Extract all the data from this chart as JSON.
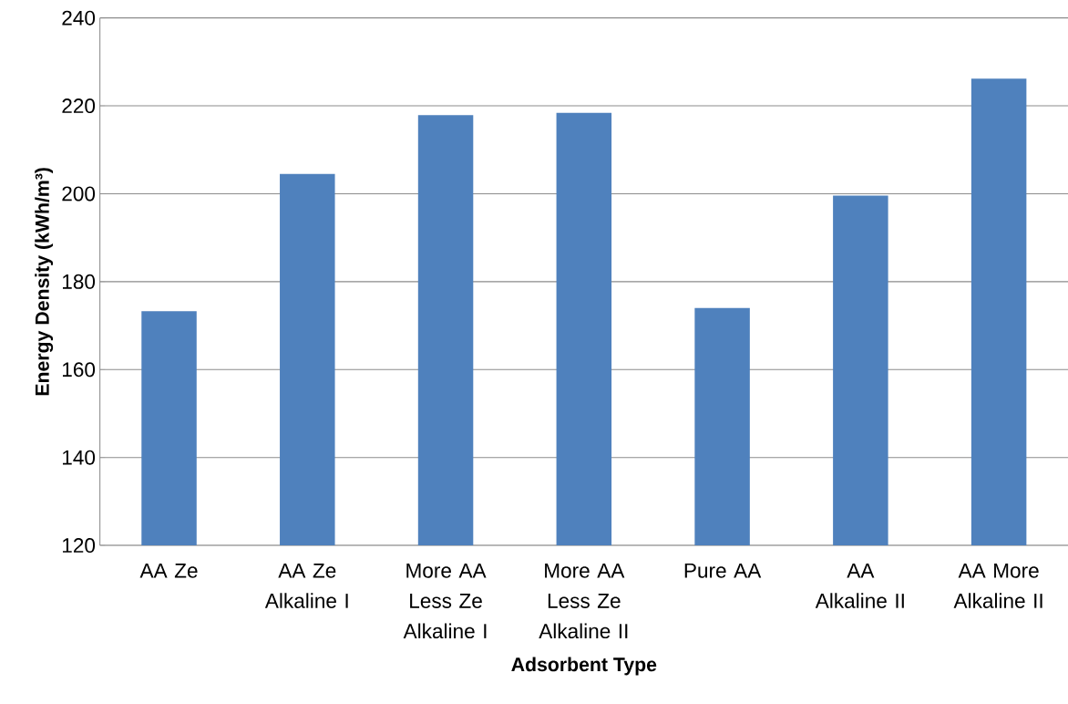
{
  "chart_data": {
    "type": "bar",
    "xlabel": "Adsorbent Type",
    "ylabel": "Energy Density (kWh/m³)",
    "categories": [
      "AA Ze",
      "AA Ze Alkaline I",
      "More AA Less Ze Alkaline I",
      "More AA Less Ze Alkaline II",
      "Pure AA",
      "AA Alkaline II",
      "AA More Alkaline II"
    ],
    "values": [
      173.3,
      204.5,
      217.9,
      218.4,
      174.0,
      199.6,
      226.2
    ],
    "color": "#4f81bd",
    "ylim": [
      120,
      240
    ],
    "yticks": [
      120,
      140,
      160,
      180,
      200,
      220,
      240
    ],
    "grid": "y"
  }
}
